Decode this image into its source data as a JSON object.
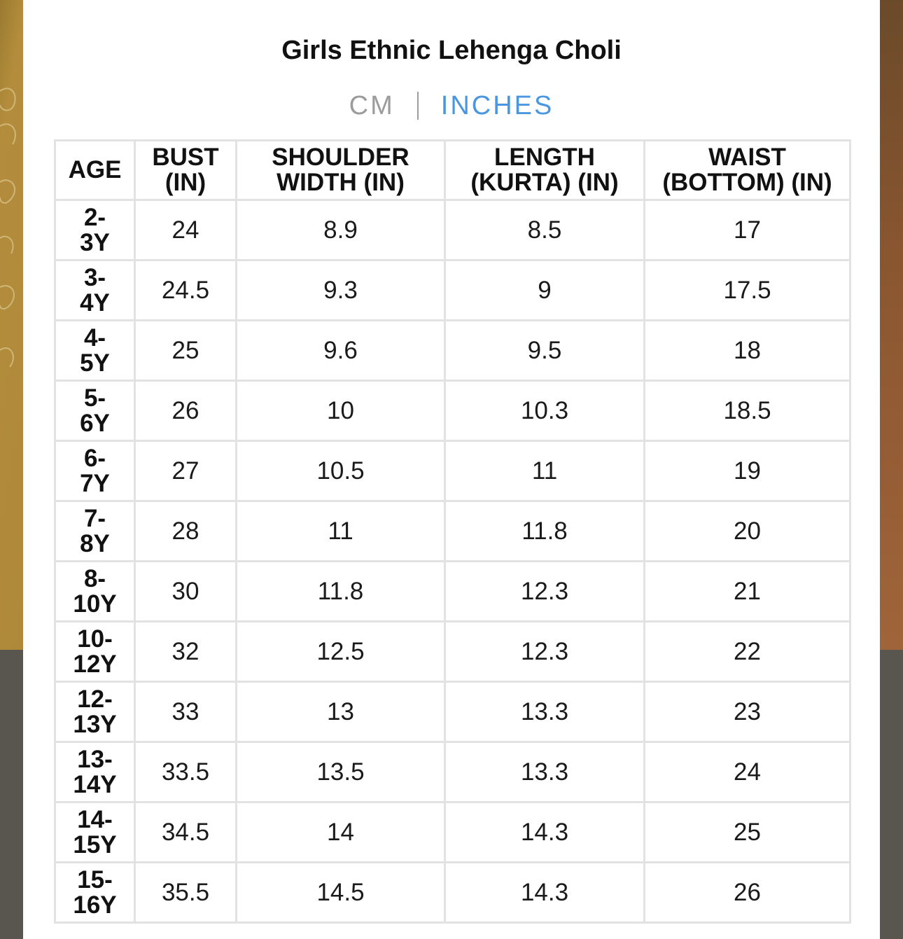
{
  "title": "Girls Ethnic Lehenga Choli",
  "unit_toggle": {
    "options": [
      "CM",
      "INCHES"
    ],
    "separator": "|",
    "selected": "INCHES"
  },
  "colors": {
    "active_unit": "#4a97df",
    "inactive_unit": "#9c9c9c",
    "table_border": "#e2e2e2"
  },
  "table": {
    "headers": [
      [
        "AGE"
      ],
      [
        "BUST",
        "(IN)"
      ],
      [
        "SHOULDER",
        "WIDTH (IN)"
      ],
      [
        "LENGTH",
        "(KURTA) (IN)"
      ],
      [
        "WAIST",
        "(BOTTOM) (IN)"
      ]
    ],
    "rows": [
      [
        [
          "2-",
          "3Y"
        ],
        "24",
        "8.9",
        "8.5",
        "17"
      ],
      [
        [
          "3-",
          "4Y"
        ],
        "24.5",
        "9.3",
        "9",
        "17.5"
      ],
      [
        [
          "4-",
          "5Y"
        ],
        "25",
        "9.6",
        "9.5",
        "18"
      ],
      [
        [
          "5-",
          "6Y"
        ],
        "26",
        "10",
        "10.3",
        "18.5"
      ],
      [
        [
          "6-",
          "7Y"
        ],
        "27",
        "10.5",
        "11",
        "19"
      ],
      [
        [
          "7-",
          "8Y"
        ],
        "28",
        "11",
        "11.8",
        "20"
      ],
      [
        [
          "8-",
          "10Y"
        ],
        "30",
        "11.8",
        "12.3",
        "21"
      ],
      [
        [
          "10-",
          "12Y"
        ],
        "32",
        "12.5",
        "12.3",
        "22"
      ],
      [
        [
          "12-",
          "13Y"
        ],
        "33",
        "13",
        "13.3",
        "23"
      ],
      [
        [
          "13-",
          "14Y"
        ],
        "33.5",
        "13.5",
        "13.3",
        "24"
      ],
      [
        [
          "14-",
          "15Y"
        ],
        "34.5",
        "14",
        "14.3",
        "25"
      ],
      [
        [
          "15-",
          "16Y"
        ],
        "35.5",
        "14.5",
        "14.3",
        "26"
      ]
    ]
  }
}
